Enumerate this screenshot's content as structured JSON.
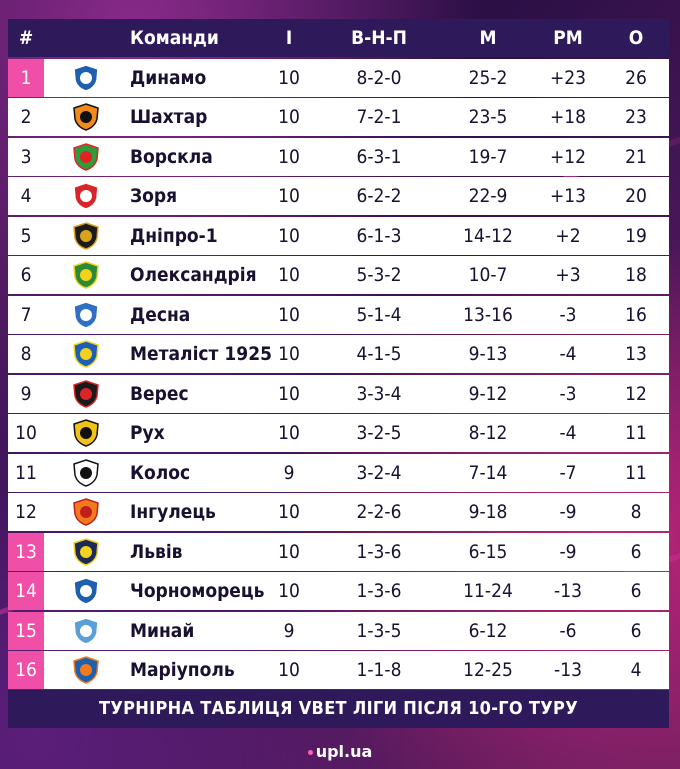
{
  "header": {
    "pos": "#",
    "team": "Команди",
    "games": "І",
    "wdl": "В-Н-П",
    "goals": "М",
    "diff": "РМ",
    "points": "О"
  },
  "rows": [
    {
      "pos": "1",
      "team": "Динамо",
      "games": "10",
      "wdl": "8-2-0",
      "goals": "25-2",
      "diff": "+23",
      "points": "26",
      "logo": "dynamo-logo-icon",
      "color": "#1f5fb0",
      "accent": "#ffffff",
      "zone": "top"
    },
    {
      "pos": "2",
      "team": "Шахтар",
      "games": "10",
      "wdl": "7-2-1",
      "goals": "23-5",
      "diff": "+18",
      "points": "23",
      "logo": "shakhtar-logo-icon",
      "color": "#f08a1c",
      "accent": "#111111",
      "zone": "none"
    },
    {
      "pos": "3",
      "team": "Ворскла",
      "games": "10",
      "wdl": "6-3-1",
      "goals": "19-7",
      "diff": "+12",
      "points": "21",
      "logo": "vorskla-logo-icon",
      "color": "#2f9b3a",
      "accent": "#e02424",
      "zone": "none"
    },
    {
      "pos": "4",
      "team": "Зоря",
      "games": "10",
      "wdl": "6-2-2",
      "goals": "22-9",
      "diff": "+13",
      "points": "20",
      "logo": "zorya-logo-icon",
      "color": "#d9252a",
      "accent": "#ffffff",
      "zone": "none"
    },
    {
      "pos": "5",
      "team": "Дніпро-1",
      "games": "10",
      "wdl": "6-1-3",
      "goals": "14-12",
      "diff": "+2",
      "points": "19",
      "logo": "dnipro1-logo-icon",
      "color": "#1c1c1c",
      "accent": "#d9a41a",
      "zone": "none"
    },
    {
      "pos": "6",
      "team": "Олександрія",
      "games": "10",
      "wdl": "5-3-2",
      "goals": "10-7",
      "diff": "+3",
      "points": "18",
      "logo": "oleksandriya-logo-icon",
      "color": "#2a8a3a",
      "accent": "#f2d21b",
      "zone": "none"
    },
    {
      "pos": "7",
      "team": "Десна",
      "games": "10",
      "wdl": "5-1-4",
      "goals": "13-16",
      "diff": "-3",
      "points": "16",
      "logo": "desna-logo-icon",
      "color": "#2f6fc4",
      "accent": "#ffffff",
      "zone": "none"
    },
    {
      "pos": "8",
      "team": "Металіст 1925",
      "games": "10",
      "wdl": "4-1-5",
      "goals": "9-13",
      "diff": "-4",
      "points": "13",
      "logo": "metalist1925-logo-icon",
      "color": "#1d5fb8",
      "accent": "#f2d21b",
      "zone": "none"
    },
    {
      "pos": "9",
      "team": "Верес",
      "games": "10",
      "wdl": "3-3-4",
      "goals": "9-12",
      "diff": "-3",
      "points": "12",
      "logo": "veres-logo-icon",
      "color": "#1a1a1a",
      "accent": "#d9252a",
      "zone": "none"
    },
    {
      "pos": "10",
      "team": "Рух",
      "games": "10",
      "wdl": "3-2-5",
      "goals": "8-12",
      "diff": "-4",
      "points": "11",
      "logo": "rukh-logo-icon",
      "color": "#f2c21b",
      "accent": "#111111",
      "zone": "none"
    },
    {
      "pos": "11",
      "team": "Колос",
      "games": "9",
      "wdl": "3-2-4",
      "goals": "7-14",
      "diff": "-7",
      "points": "11",
      "logo": "kolos-logo-icon",
      "color": "#ffffff",
      "accent": "#111111",
      "zone": "none"
    },
    {
      "pos": "12",
      "team": "Інгулець",
      "games": "10",
      "wdl": "2-2-6",
      "goals": "9-18",
      "diff": "-9",
      "points": "8",
      "logo": "inhulets-logo-icon",
      "color": "#f07a1c",
      "accent": "#c21d1d",
      "zone": "none"
    },
    {
      "pos": "13",
      "team": "Львів",
      "games": "10",
      "wdl": "1-3-6",
      "goals": "6-15",
      "diff": "-9",
      "points": "6",
      "logo": "lviv-logo-icon",
      "color": "#1c2a5a",
      "accent": "#f2d21b",
      "zone": "bottom"
    },
    {
      "pos": "14",
      "team": "Чорноморець",
      "games": "10",
      "wdl": "1-3-6",
      "goals": "11-24",
      "diff": "-13",
      "points": "6",
      "logo": "chornomorets-logo-icon",
      "color": "#1f5fb0",
      "accent": "#ffffff",
      "zone": "bottom"
    },
    {
      "pos": "15",
      "team": "Минай",
      "games": "9",
      "wdl": "1-3-5",
      "goals": "6-12",
      "diff": "-6",
      "points": "6",
      "logo": "mynai-logo-icon",
      "color": "#5aa0d8",
      "accent": "#ffffff",
      "zone": "bottom"
    },
    {
      "pos": "16",
      "team": "Маріуполь",
      "games": "10",
      "wdl": "1-1-8",
      "goals": "12-25",
      "diff": "-13",
      "points": "4",
      "logo": "mariupol-logo-icon",
      "color": "#1f5fb0",
      "accent": "#f07a1c",
      "zone": "bottom"
    }
  ],
  "footer": {
    "caption": "ТУРНІРНА ТАБЛИЦЯ VBET ЛІГИ ПІСЛЯ 10-ГО ТУРУ"
  },
  "brand": {
    "text": "upl.ua"
  },
  "colors": {
    "header_bg": "#2e1a5a",
    "highlight": "#f04fa8",
    "row_bg": "#ffffff"
  }
}
